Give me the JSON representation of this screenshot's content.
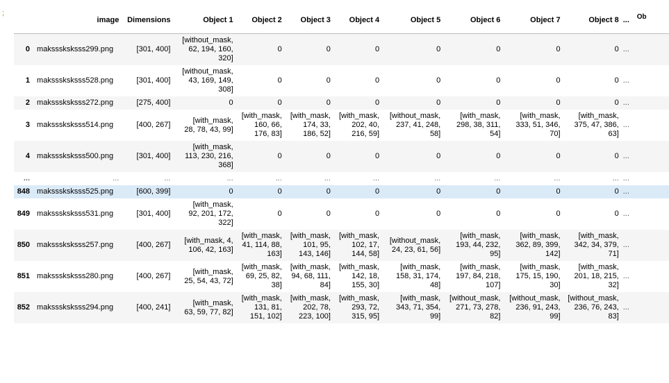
{
  "prompt_marker": ";",
  "columns": {
    "index": "",
    "image": "image",
    "dimensions": "Dimensions",
    "obj1": "Object 1",
    "obj2": "Object 2",
    "obj3": "Object 3",
    "obj4": "Object 4",
    "obj5": "Object 5",
    "obj6": "Object 6",
    "obj7": "Object 7",
    "obj8": "Object 8",
    "ellipsis": "...",
    "cut": "Ob"
  },
  "rows": [
    {
      "idx": "0",
      "image": "maksssksksss299.png",
      "dims": "[301, 400]",
      "o1": "[without_mask,\n62, 194, 160,\n320]",
      "o2": "0",
      "o3": "0",
      "o4": "0",
      "o5": "0",
      "o6": "0",
      "o7": "0",
      "o8": "0",
      "e": "..."
    },
    {
      "idx": "1",
      "image": "maksssksksss528.png",
      "dims": "[301, 400]",
      "o1": "[without_mask,\n43, 169, 149,\n308]",
      "o2": "0",
      "o3": "0",
      "o4": "0",
      "o5": "0",
      "o6": "0",
      "o7": "0",
      "o8": "0",
      "e": "..."
    },
    {
      "idx": "2",
      "image": "maksssksksss272.png",
      "dims": "[275, 400]",
      "o1": "0",
      "o2": "0",
      "o3": "0",
      "o4": "0",
      "o5": "0",
      "o6": "0",
      "o7": "0",
      "o8": "0",
      "e": "..."
    },
    {
      "idx": "3",
      "image": "maksssksksss514.png",
      "dims": "[400, 267]",
      "o1": "[with_mask,\n28, 78, 43, 99]",
      "o2": "[with_mask,\n160, 66,\n176, 83]",
      "o3": "[with_mask,\n174, 33,\n186, 52]",
      "o4": "[with_mask,\n202, 40,\n216, 59]",
      "o5": "[without_mask,\n237, 41, 248,\n58]",
      "o6": "[with_mask,\n298, 38, 311,\n54]",
      "o7": "[with_mask,\n333, 51, 346,\n70]",
      "o8": "[with_mask,\n375, 47, 386,\n63]",
      "e": "..."
    },
    {
      "idx": "4",
      "image": "maksssksksss500.png",
      "dims": "[301, 400]",
      "o1": "[with_mask,\n113, 230, 216,\n368]",
      "o2": "0",
      "o3": "0",
      "o4": "0",
      "o5": "0",
      "o6": "0",
      "o7": "0",
      "o8": "0",
      "e": "..."
    },
    {
      "idx": "...",
      "image": "...",
      "dims": "...",
      "o1": "...",
      "o2": "...",
      "o3": "...",
      "o4": "...",
      "o5": "...",
      "o6": "...",
      "o7": "...",
      "o8": "...",
      "e": "..."
    },
    {
      "idx": "848",
      "image": "maksssksksss525.png",
      "dims": "[600, 399]",
      "o1": "0",
      "o2": "0",
      "o3": "0",
      "o4": "0",
      "o5": "0",
      "o6": "0",
      "o7": "0",
      "o8": "0",
      "e": "..."
    },
    {
      "idx": "849",
      "image": "maksssksksss531.png",
      "dims": "[301, 400]",
      "o1": "[with_mask,\n92, 201, 172,\n322]",
      "o2": "0",
      "o3": "0",
      "o4": "0",
      "o5": "0",
      "o6": "0",
      "o7": "0",
      "o8": "0",
      "e": "..."
    },
    {
      "idx": "850",
      "image": "maksssksksss257.png",
      "dims": "[400, 267]",
      "o1": "[with_mask, 4,\n106, 42, 163]",
      "o2": "[with_mask,\n41, 114, 88,\n163]",
      "o3": "[with_mask,\n101, 95,\n143, 146]",
      "o4": "[with_mask,\n102, 17,\n144, 58]",
      "o5": "[without_mask,\n24, 23, 61, 56]",
      "o6": "[with_mask,\n193, 44, 232,\n95]",
      "o7": "[with_mask,\n362, 89, 399,\n142]",
      "o8": "[with_mask,\n342, 34, 379,\n71]",
      "e": "..."
    },
    {
      "idx": "851",
      "image": "maksssksksss280.png",
      "dims": "[400, 267]",
      "o1": "[with_mask,\n25, 54, 43, 72]",
      "o2": "[with_mask,\n69, 25, 82,\n38]",
      "o3": "[with_mask,\n94, 68, 111,\n84]",
      "o4": "[with_mask,\n142, 18,\n155, 30]",
      "o5": "[with_mask,\n158, 31, 174,\n48]",
      "o6": "[with_mask,\n197, 84, 218,\n107]",
      "o7": "[with_mask,\n175, 15, 190,\n30]",
      "o8": "[with_mask,\n201, 18, 215,\n32]",
      "e": "..."
    },
    {
      "idx": "852",
      "image": "maksssksksss294.png",
      "dims": "[400, 241]",
      "o1": "[with_mask,\n63, 59, 77, 82]",
      "o2": "[with_mask,\n131, 81,\n151, 102]",
      "o3": "[with_mask,\n202, 78,\n223, 100]",
      "o4": "[with_mask,\n293, 72,\n315, 95]",
      "o5": "[with_mask,\n343, 71, 354,\n99]",
      "o6": "[without_mask,\n271, 73, 278,\n82]",
      "o7": "[without_mask,\n236, 91, 243,\n99]",
      "o8": "[without_mask,\n236, 76, 243,\n83]",
      "e": "..."
    }
  ],
  "highlight_row_index": 6,
  "colors": {
    "row_odd": "#f5f5f5",
    "row_even": "#ffffff",
    "row_hover": "#dbeaf7",
    "header_border": "#bdbdbd",
    "prompt_marker": "#b8860b"
  }
}
